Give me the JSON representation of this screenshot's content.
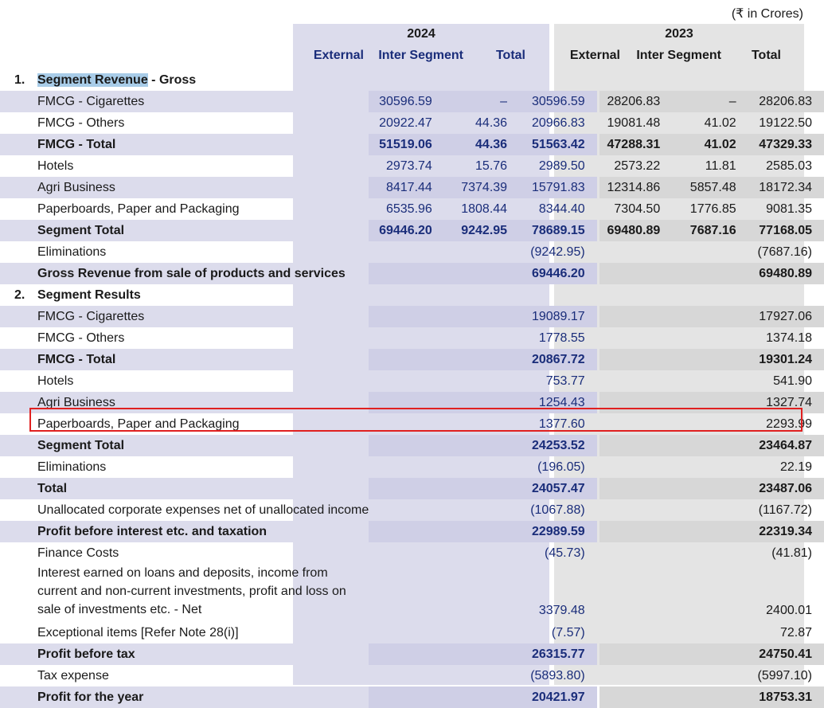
{
  "units": "(₹ in Crores)",
  "years": [
    "2024",
    "2023"
  ],
  "column_headers": {
    "2024": [
      "External",
      "Inter Segment",
      "Total"
    ],
    "2023": [
      "External",
      "Inter Segment",
      "Total"
    ]
  },
  "section1": {
    "number": "1.",
    "title_highlighted": "Segment Revenue",
    "title_rest": " - Gross",
    "rows": [
      {
        "label": "FMCG - Cigarettes",
        "bold": false,
        "stripe": true,
        "v": [
          "30596.59",
          "–",
          "30596.59",
          "28206.83",
          "–",
          "28206.83"
        ]
      },
      {
        "label": "FMCG - Others",
        "bold": false,
        "stripe": false,
        "v": [
          "20922.47",
          "44.36",
          "20966.83",
          "19081.48",
          "41.02",
          "19122.50"
        ]
      },
      {
        "label": "FMCG - Total",
        "bold": true,
        "stripe": true,
        "v": [
          "51519.06",
          "44.36",
          "51563.42",
          "47288.31",
          "41.02",
          "47329.33"
        ]
      },
      {
        "label": "Hotels",
        "bold": false,
        "stripe": false,
        "v": [
          "2973.74",
          "15.76",
          "2989.50",
          "2573.22",
          "11.81",
          "2585.03"
        ]
      },
      {
        "label": "Agri Business",
        "bold": false,
        "stripe": true,
        "v": [
          "8417.44",
          "7374.39",
          "15791.83",
          "12314.86",
          "5857.48",
          "18172.34"
        ]
      },
      {
        "label": "Paperboards, Paper and Packaging",
        "bold": false,
        "stripe": false,
        "v": [
          "6535.96",
          "1808.44",
          "8344.40",
          "7304.50",
          "1776.85",
          "9081.35"
        ]
      },
      {
        "label": "Segment Total",
        "bold": true,
        "stripe": true,
        "v": [
          "69446.20",
          "9242.95",
          "78689.15",
          "69480.89",
          "7687.16",
          "77168.05"
        ]
      },
      {
        "label": "Eliminations",
        "bold": false,
        "stripe": false,
        "v": [
          "",
          "",
          "(9242.95)",
          "",
          "",
          "(7687.16)"
        ]
      },
      {
        "label": "Gross Revenue from sale of products and services",
        "bold": true,
        "stripe": true,
        "v": [
          "",
          "",
          "69446.20",
          "",
          "",
          "69480.89"
        ]
      }
    ]
  },
  "section2": {
    "number": "2.",
    "title": "Segment Results",
    "rows": [
      {
        "label": "FMCG - Cigarettes",
        "bold": false,
        "stripe": true,
        "t24": "19089.17",
        "t23": "17927.06"
      },
      {
        "label": "FMCG - Others",
        "bold": false,
        "stripe": false,
        "t24": "1778.55",
        "t23": "1374.18"
      },
      {
        "label": "FMCG - Total",
        "bold": true,
        "stripe": true,
        "t24": "20867.72",
        "t23": "19301.24"
      },
      {
        "label": "Hotels",
        "bold": false,
        "stripe": false,
        "t24": "753.77",
        "t23": "541.90"
      },
      {
        "label": "Agri Business",
        "bold": false,
        "stripe": true,
        "t24": "1254.43",
        "t23": "1327.74"
      },
      {
        "label": "Paperboards, Paper and Packaging",
        "bold": false,
        "stripe": false,
        "t24": "1377.60",
        "t23": "2293.99",
        "highlighted": true
      },
      {
        "label": "Segment Total",
        "bold": true,
        "stripe": true,
        "t24": "24253.52",
        "t23": "23464.87"
      },
      {
        "label": "Eliminations",
        "bold": false,
        "stripe": false,
        "t24": "(196.05)",
        "t23": "22.19"
      },
      {
        "label": "Total",
        "bold": true,
        "stripe": true,
        "t24": "24057.47",
        "t23": "23487.06"
      },
      {
        "label": "Unallocated corporate expenses net of unallocated income",
        "bold": false,
        "stripe": false,
        "t24": "(1067.88)",
        "t23": "(1167.72)"
      },
      {
        "label": "Profit before interest etc. and taxation",
        "bold": true,
        "stripe": true,
        "t24": "22989.59",
        "t23": "22319.34"
      },
      {
        "label": "Finance Costs",
        "bold": false,
        "stripe": false,
        "t24": "(45.73)",
        "t23": "(41.81)"
      },
      {
        "label": "Interest earned on loans and deposits, income from current and non-current investments, profit and loss on sale of investments etc. - Net",
        "bold": false,
        "stripe": false,
        "tall": true,
        "t24": "3379.48",
        "t23": "2400.01"
      },
      {
        "label": "Exceptional items [Refer Note 28(i)]",
        "bold": false,
        "stripe": false,
        "t24": "(7.57)",
        "t23": "72.87"
      },
      {
        "label": "Profit before tax",
        "bold": true,
        "stripe": true,
        "t24": "26315.77",
        "t23": "24750.41"
      },
      {
        "label": "Tax expense",
        "bold": false,
        "stripe": false,
        "t24": "(5893.80)",
        "t23": "(5997.10)"
      },
      {
        "label": "Profit for the year",
        "bold": true,
        "stripe": true,
        "t24": "20421.97",
        "t23": "18753.31"
      }
    ]
  }
}
